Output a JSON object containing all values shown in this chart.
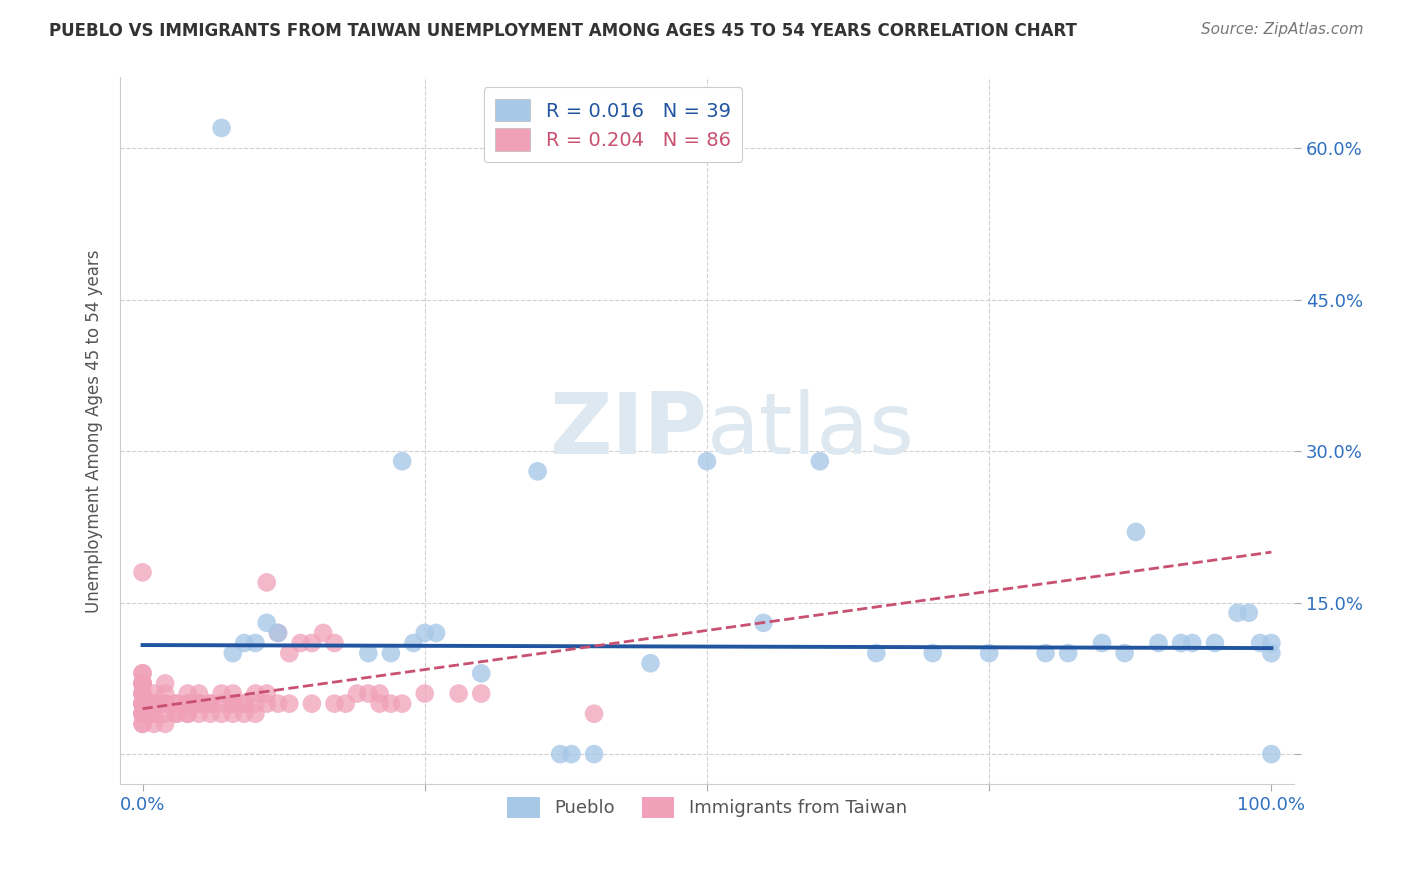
{
  "title": "PUEBLO VS IMMIGRANTS FROM TAIWAN UNEMPLOYMENT AMONG AGES 45 TO 54 YEARS CORRELATION CHART",
  "source": "Source: ZipAtlas.com",
  "ylabel": "Unemployment Among Ages 45 to 54 years",
  "xlim": [
    -2,
    102
  ],
  "ylim": [
    -3,
    67
  ],
  "pueblo_R": 0.016,
  "pueblo_N": 39,
  "taiwan_R": 0.204,
  "taiwan_N": 86,
  "pueblo_color": "#a8c8e8",
  "taiwan_color": "#f0a0b8",
  "pueblo_line_color": "#2255a0",
  "taiwan_line_color": "#c85070",
  "watermark_color": "#dde8f0",
  "pueblo_x": [
    7,
    23,
    35,
    50,
    60,
    75,
    80,
    87,
    90,
    92,
    95,
    97,
    98,
    99,
    100,
    100,
    100,
    8,
    9,
    10,
    12,
    20,
    22,
    24,
    25,
    26,
    30,
    38,
    40,
    45,
    55,
    65,
    70,
    82,
    85,
    88,
    93,
    11,
    37
  ],
  "pueblo_y": [
    62,
    29,
    28,
    29,
    29,
    10,
    10,
    10,
    11,
    11,
    11,
    14,
    14,
    11,
    11,
    10,
    0,
    10,
    11,
    11,
    12,
    10,
    10,
    11,
    12,
    12,
    8,
    0,
    0,
    9,
    13,
    10,
    10,
    10,
    11,
    22,
    11,
    13,
    0
  ],
  "taiwan_x": [
    0,
    0,
    0,
    0,
    0,
    0,
    0,
    0,
    0,
    0,
    0,
    0,
    0,
    0,
    0,
    0,
    0,
    0,
    0,
    0,
    1,
    1,
    1,
    1,
    1,
    1,
    2,
    2,
    2,
    2,
    2,
    2,
    3,
    3,
    3,
    3,
    4,
    4,
    4,
    4,
    4,
    5,
    5,
    5,
    5,
    5,
    6,
    6,
    6,
    7,
    7,
    7,
    8,
    8,
    8,
    8,
    9,
    9,
    9,
    10,
    10,
    10,
    11,
    11,
    11,
    12,
    12,
    13,
    13,
    14,
    15,
    15,
    16,
    17,
    17,
    18,
    19,
    20,
    21,
    21,
    22,
    23,
    25,
    28,
    30,
    40
  ],
  "taiwan_y": [
    3,
    3,
    4,
    4,
    4,
    5,
    5,
    5,
    5,
    5,
    6,
    6,
    6,
    7,
    7,
    7,
    7,
    8,
    8,
    18,
    3,
    4,
    4,
    5,
    5,
    6,
    3,
    4,
    5,
    5,
    6,
    7,
    4,
    4,
    5,
    5,
    4,
    4,
    5,
    5,
    6,
    4,
    5,
    5,
    5,
    6,
    4,
    5,
    5,
    4,
    5,
    6,
    4,
    5,
    5,
    6,
    4,
    5,
    5,
    4,
    5,
    6,
    5,
    6,
    17,
    5,
    12,
    5,
    10,
    11,
    11,
    5,
    12,
    11,
    5,
    5,
    6,
    6,
    6,
    5,
    5,
    5,
    6,
    6,
    6,
    4
  ],
  "pueblo_line_y_at_0": 10.8,
  "pueblo_line_y_at_100": 10.5,
  "taiwan_line_y_at_0": 4.5,
  "taiwan_line_y_at_100": 20.0
}
